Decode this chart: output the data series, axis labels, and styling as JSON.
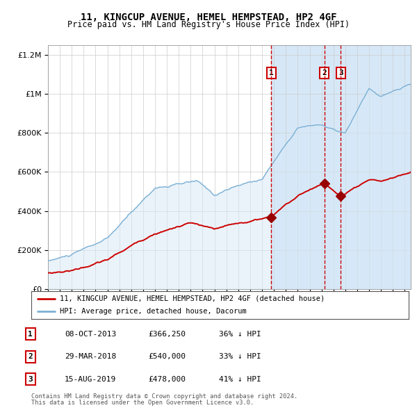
{
  "title": "11, KINGCUP AVENUE, HEMEL HEMPSTEAD, HP2 4GF",
  "subtitle": "Price paid vs. HM Land Registry's House Price Index (HPI)",
  "legend_line1": "11, KINGCUP AVENUE, HEMEL HEMPSTEAD, HP2 4GF (detached house)",
  "legend_line2": "HPI: Average price, detached house, Dacorum",
  "transactions": [
    {
      "label": "1",
      "date": "08-OCT-2013",
      "price": 366250,
      "pct": "36%",
      "dir": "↓",
      "x_year": 2013.77
    },
    {
      "label": "2",
      "date": "29-MAR-2018",
      "price": 540000,
      "pct": "33%",
      "dir": "↓",
      "x_year": 2018.24
    },
    {
      "label": "3",
      "date": "15-AUG-2019",
      "price": 478000,
      "pct": "41%",
      "dir": "↓",
      "x_year": 2019.62
    }
  ],
  "footnote1": "Contains HM Land Registry data © Crown copyright and database right 2024.",
  "footnote2": "This data is licensed under the Open Government Licence v3.0.",
  "hpi_color": "#7bafd4",
  "hpi_fill": "#d6e8f7",
  "price_color": "#cc0000",
  "marker_color": "#990000",
  "background_color": "#ffffff",
  "highlight_bg": "#d6e8f7",
  "xmin": 1995.0,
  "xmax": 2025.5,
  "ymin": 0,
  "ymax": 1250000,
  "highlight_start": 2013.77
}
